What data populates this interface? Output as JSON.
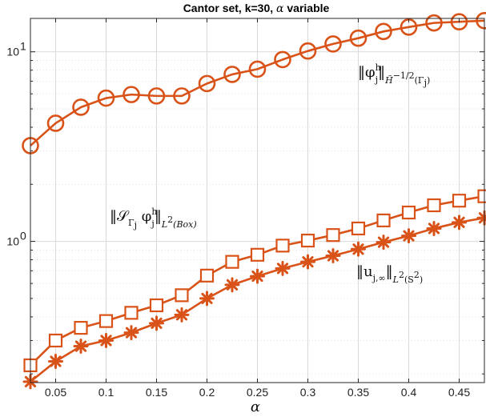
{
  "chart_data": {
    "type": "line",
    "title_prefix": "Cantor set, k=30,",
    "title_symbol": "α",
    "title_suffix": "variable",
    "xlabel": "α",
    "ylabel": "",
    "xlim": [
      0.025,
      0.475
    ],
    "ylim": [
      0.18,
      15
    ],
    "y_scale": "log",
    "grid": true,
    "x": [
      0.025,
      0.05,
      0.075,
      0.1,
      0.125,
      0.15,
      0.175,
      0.2,
      0.225,
      0.25,
      0.275,
      0.3,
      0.325,
      0.35,
      0.375,
      0.4,
      0.425,
      0.45,
      0.475
    ],
    "x_ticks": [
      "0.05",
      "0.1",
      "0.15",
      "0.2",
      "0.25",
      "0.3",
      "0.35",
      "0.4",
      "0.45"
    ],
    "y_ticks": [
      {
        "base": "10",
        "exp": "0"
      },
      {
        "base": "10",
        "exp": "1"
      }
    ],
    "series": [
      {
        "marker": "circle",
        "values": [
          3.2,
          4.2,
          5.1,
          5.7,
          5.95,
          5.85,
          5.85,
          6.8,
          7.6,
          8.1,
          9.1,
          10.1,
          11.0,
          11.8,
          12.8,
          13.5,
          14.2,
          14.4,
          14.6
        ]
      },
      {
        "marker": "square",
        "values": [
          0.222,
          0.3,
          0.35,
          0.38,
          0.42,
          0.46,
          0.52,
          0.66,
          0.78,
          0.85,
          0.95,
          1.01,
          1.08,
          1.17,
          1.29,
          1.42,
          1.55,
          1.64,
          1.73
        ]
      },
      {
        "marker": "asterisk",
        "values": [
          0.182,
          0.233,
          0.28,
          0.3,
          0.33,
          0.37,
          0.41,
          0.5,
          0.59,
          0.655,
          0.72,
          0.78,
          0.84,
          0.91,
          0.99,
          1.07,
          1.17,
          1.26,
          1.33
        ]
      }
    ],
    "annotations": [
      {
        "main": "‖φ",
        "sup": "h",
        "sub": "j",
        "close": "‖",
        "norm": "H̃",
        "norm_sup": "−1/2",
        "domain": "(Γ",
        "domain_sub": "j",
        "domain_close": ")"
      },
      {
        "main": "‖𝒮",
        "sub1": "Γ",
        "sub2": "j",
        "mid": " φ",
        "sup": "h",
        "sub": "j",
        "close": "‖",
        "norm": "L",
        "norm_sup": "2",
        "domain": "(Box)"
      },
      {
        "main": "‖u",
        "sub": "j,∞",
        "close": "‖",
        "norm": "L",
        "norm_sup": "2",
        "domain": "(S",
        "domain_sup": "2",
        "domain_close": ")"
      }
    ],
    "colors": {
      "series": "#d95319",
      "grid": "#d9d9d9",
      "axis": "#262626"
    }
  }
}
